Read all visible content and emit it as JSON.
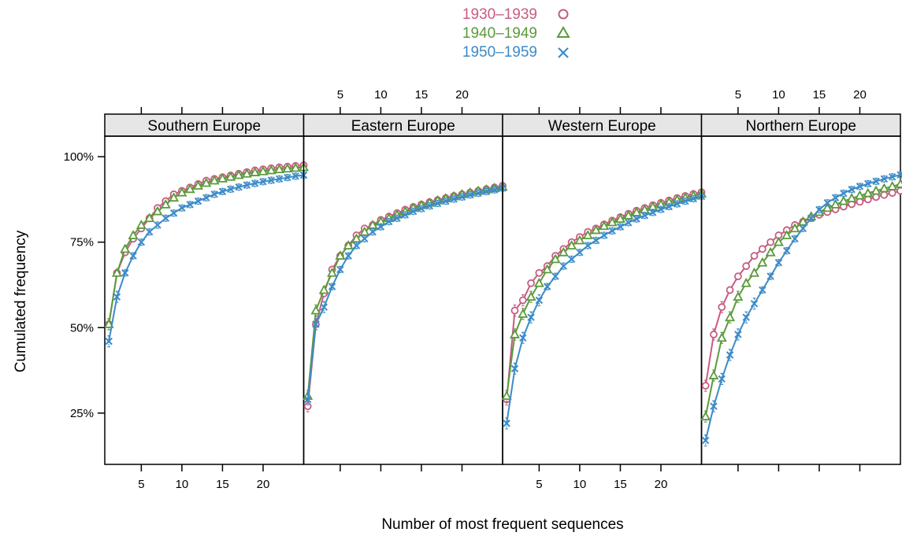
{
  "legend": [
    {
      "label": "1930–1939",
      "symbol": "circle",
      "color": "#C75C82"
    },
    {
      "label": "1940–1949",
      "symbol": "triangle",
      "color": "#5D9A3C"
    },
    {
      "label": "1950–1959",
      "symbol": "cross",
      "color": "#3C8BC8"
    }
  ],
  "axes": {
    "xlabel": "Number of most frequent sequences",
    "ylabel": "Cumulated frequency",
    "xticks": [
      "5",
      "10",
      "15",
      "20"
    ],
    "yticks": [
      "25%",
      "50%",
      "75%",
      "100%"
    ]
  },
  "chart_data": {
    "type": "line",
    "xlabel": "Number of most frequent sequences",
    "ylabel": "Cumulated frequency",
    "x": [
      1,
      2,
      3,
      4,
      5,
      6,
      7,
      8,
      9,
      10,
      11,
      12,
      13,
      14,
      15,
      16,
      17,
      18,
      19,
      20,
      21,
      22,
      23,
      24,
      25
    ],
    "xlim": [
      0.5,
      25
    ],
    "ylim": [
      10,
      106
    ],
    "x_ticks": [
      5,
      10,
      15,
      20
    ],
    "y_ticks": [
      25,
      50,
      75,
      100
    ],
    "y_unit": "%",
    "error_bars": true,
    "panels": [
      {
        "name": "Southern Europe",
        "series": [
          {
            "name": "1930–1939",
            "values": [
              51,
              66,
              72,
              76,
              79,
              82,
              85,
              87,
              89,
              90,
              91,
              92,
              93,
              93.5,
              94,
              94.5,
              95,
              95.5,
              96,
              96.3,
              96.6,
              96.9,
              97.1,
              97.3,
              97.5
            ]
          },
          {
            "name": "1940–1949",
            "values": [
              51,
              66,
              73,
              77,
              80,
              82,
              84,
              86,
              88,
              89.5,
              90.5,
              91.5,
              92.3,
              93,
              93.6,
              94.1,
              94.6,
              95,
              95.4,
              95.7,
              96,
              96.3,
              96.5,
              96.7,
              96.9
            ]
          },
          {
            "name": "1950–1959",
            "values": [
              46,
              59,
              66,
              71,
              75,
              78,
              80,
              82,
              83.5,
              85,
              86,
              87,
              88,
              89,
              89.8,
              90.5,
              91.1,
              91.7,
              92.2,
              92.7,
              93.1,
              93.5,
              93.9,
              94.3,
              94.6
            ]
          }
        ]
      },
      {
        "name": "Eastern Europe",
        "series": [
          {
            "name": "1930–1939",
            "values": [
              27,
              51,
              60,
              67,
              71,
              74,
              77,
              79,
              80,
              81.5,
              82.5,
              83.5,
              84.5,
              85.3,
              86,
              86.7,
              87.3,
              87.9,
              88.5,
              89,
              89.5,
              90,
              90.5,
              91,
              91.5
            ]
          },
          {
            "name": "1940–1949",
            "values": [
              30,
              55,
              61,
              66,
              71,
              74,
              76,
              78,
              80,
              81,
              82,
              83,
              84,
              85,
              85.8,
              86.5,
              87.2,
              87.8,
              88.4,
              89,
              89.5,
              90,
              90.4,
              90.8,
              91.2
            ]
          },
          {
            "name": "1950–1959",
            "values": [
              29,
              51,
              56,
              62,
              67,
              71,
              74,
              76,
              78,
              79.5,
              81,
              82,
              83,
              84,
              84.8,
              85.6,
              86.3,
              87,
              87.6,
              88.2,
              88.8,
              89.3,
              89.8,
              90.3,
              90.8
            ]
          }
        ]
      },
      {
        "name": "Western Europe",
        "series": [
          {
            "name": "1930–1939",
            "values": [
              29,
              55,
              58,
              63,
              66,
              68,
              71,
              73,
              75,
              76.5,
              78,
              79,
              80.2,
              81.3,
              82.3,
              83.3,
              84.2,
              85,
              85.8,
              86.5,
              87.2,
              87.9,
              88.5,
              89.1,
              89.6
            ]
          },
          {
            "name": "1940–1949",
            "values": [
              30,
              48,
              54,
              59,
              63,
              67,
              70,
              72,
              74,
              75.5,
              77,
              78.5,
              79.7,
              80.8,
              81.8,
              82.8,
              83.7,
              84.5,
              85.3,
              86,
              86.7,
              87.4,
              88,
              88.6,
              89.2
            ]
          },
          {
            "name": "1950–1959",
            "values": [
              22,
              38,
              47,
              53,
              58,
              62,
              65,
              68,
              70,
              72,
              74,
              75.5,
              77,
              78.3,
              79.5,
              80.7,
              81.8,
              82.8,
              83.7,
              84.6,
              85.4,
              86.2,
              87,
              87.7,
              88.4
            ]
          }
        ]
      },
      {
        "name": "Northern Europe",
        "series": [
          {
            "name": "1930–1939",
            "values": [
              33,
              48,
              56,
              61,
              65,
              68,
              71,
              73,
              75,
              77,
              78.5,
              80,
              81,
              82,
              83,
              83.8,
              84.6,
              85.4,
              86.1,
              86.8,
              87.5,
              88.2,
              88.8,
              89.4,
              90
            ]
          },
          {
            "name": "1940–1949",
            "values": [
              24,
              36,
              47,
              53,
              59,
              63,
              66,
              69,
              72,
              75,
              77,
              79,
              81,
              82.5,
              83.8,
              85,
              86,
              87,
              87.8,
              88.6,
              89.3,
              90,
              90.7,
              91.3,
              92
            ]
          },
          {
            "name": "1950–1959",
            "values": [
              17,
              27,
              35,
              42,
              48,
              53,
              57,
              61,
              65,
              69,
              72.5,
              76,
              79,
              82,
              84.5,
              86.5,
              88,
              89.3,
              90.4,
              91.3,
              92.1,
              92.8,
              93.5,
              94.1,
              94.7
            ]
          }
        ]
      }
    ]
  }
}
